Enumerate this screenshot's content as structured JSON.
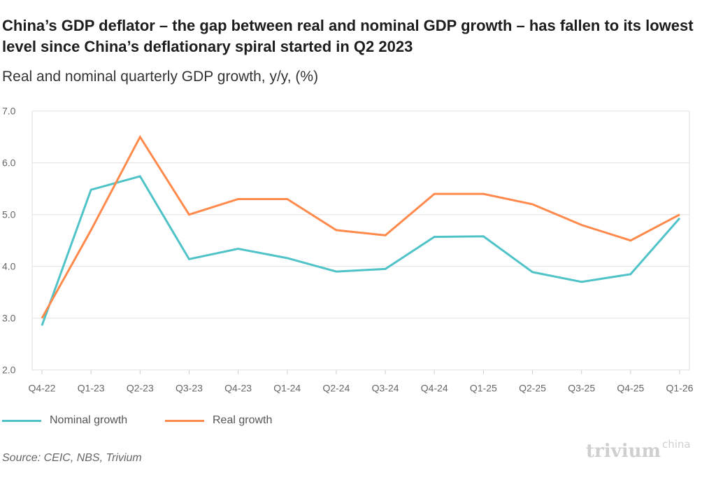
{
  "chart_data": {
    "type": "line",
    "title": "China’s GDP deflator – the gap between real and nominal GDP growth – has fallen to its lowest level since China’s deflationary spiral started in Q2 2023",
    "subtitle": "Real and nominal quarterly GDP growth, y/y, (%)",
    "categories": [
      "Q4-22",
      "Q1-23",
      "Q2-23",
      "Q3-23",
      "Q4-23",
      "Q1-24",
      "Q2-24",
      "Q3-24",
      "Q4-24",
      "Q1-25",
      "Q2-25",
      "Q3-25",
      "Q4-25",
      "Q1-26"
    ],
    "yticks": [
      "2.0",
      "3.0",
      "4.0",
      "5.0",
      "6.0",
      "7.0"
    ],
    "ylim": [
      2.0,
      7.0
    ],
    "grid": true,
    "legend_placement": "bottom-left",
    "series": [
      {
        "name": "Nominal growth",
        "color": "#4fc3c8",
        "values": [
          2.86,
          5.48,
          5.74,
          4.14,
          4.34,
          4.16,
          3.9,
          3.95,
          4.57,
          4.58,
          3.89,
          3.7,
          3.85,
          4.93
        ]
      },
      {
        "name": "Real growth",
        "color": "#ff8a4c",
        "values": [
          3.0,
          4.7,
          6.5,
          5.0,
          5.3,
          5.3,
          4.7,
          4.6,
          5.4,
          5.4,
          5.2,
          4.8,
          4.5,
          5.0
        ]
      }
    ],
    "source": "Source: CEIC, NBS, Trivium",
    "logo": {
      "main": "trivium",
      "sup": "china"
    }
  }
}
